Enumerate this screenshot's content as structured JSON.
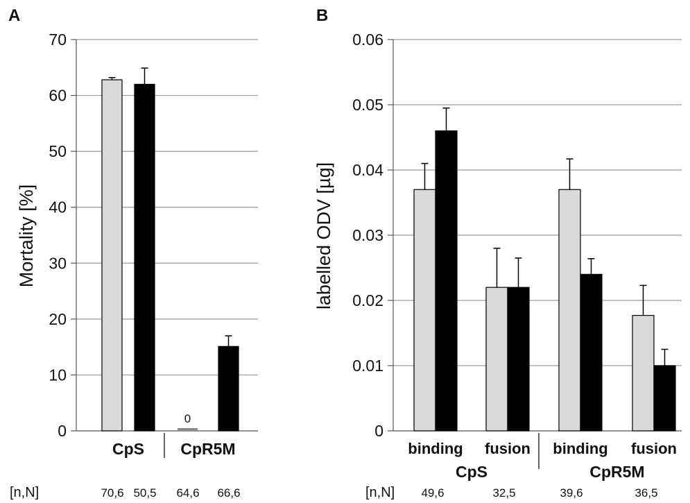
{
  "chart_data": [
    {
      "type": "bar",
      "panel_label": "A",
      "ylabel": "Mortality [%]",
      "ylim": [
        0,
        70
      ],
      "yticks": [
        "0",
        "10",
        "20",
        "30",
        "40",
        "50",
        "60",
        "70"
      ],
      "grid": true,
      "groups": [
        {
          "name": "CpS",
          "bars": [
            {
              "fill": "#d9d9d9",
              "value": 62.8,
              "error": 0.4
            },
            {
              "fill": "#000000",
              "value": 62.0,
              "error": 2.9
            }
          ]
        },
        {
          "name": "CpR5M",
          "bars": [
            {
              "fill": "#8c8c8c",
              "value": 0,
              "error": 0,
              "label": "0"
            },
            {
              "fill": "#000000",
              "value": 15.1,
              "error": 1.9
            }
          ]
        }
      ],
      "sample_label": "[n,N]",
      "sample_sizes": [
        "70,6",
        "50,5",
        "64,6",
        "66,6"
      ]
    },
    {
      "type": "bar",
      "panel_label": "B",
      "ylabel": "labelled ODV [µg]",
      "ylim": [
        0,
        0.06
      ],
      "yticks": [
        "0",
        "0.01",
        "0.02",
        "0.03",
        "0.04",
        "0.05",
        "0.06"
      ],
      "grid": true,
      "groups": [
        {
          "name": "CpS",
          "subgroups": [
            {
              "name": "binding",
              "bars": [
                {
                  "fill": "#d9d9d9",
                  "value": 0.037,
                  "error": 0.004
                },
                {
                  "fill": "#000000",
                  "value": 0.046,
                  "error": 0.0035
                }
              ]
            },
            {
              "name": "fusion",
              "bars": [
                {
                  "fill": "#d9d9d9",
                  "value": 0.022,
                  "error": 0.006
                },
                {
                  "fill": "#000000",
                  "value": 0.022,
                  "error": 0.0045
                }
              ]
            }
          ]
        },
        {
          "name": "CpR5M",
          "subgroups": [
            {
              "name": "binding",
              "bars": [
                {
                  "fill": "#d9d9d9",
                  "value": 0.037,
                  "error": 0.0047
                },
                {
                  "fill": "#000000",
                  "value": 0.024,
                  "error": 0.0024
                }
              ]
            },
            {
              "name": "fusion",
              "bars": [
                {
                  "fill": "#d9d9d9",
                  "value": 0.0177,
                  "error": 0.0046
                },
                {
                  "fill": "#000000",
                  "value": 0.01,
                  "error": 0.0025
                }
              ]
            }
          ]
        }
      ],
      "sample_label": "[n,N]",
      "sample_sizes": [
        "49,6",
        "32,5",
        "39,6",
        "36,5"
      ]
    }
  ]
}
